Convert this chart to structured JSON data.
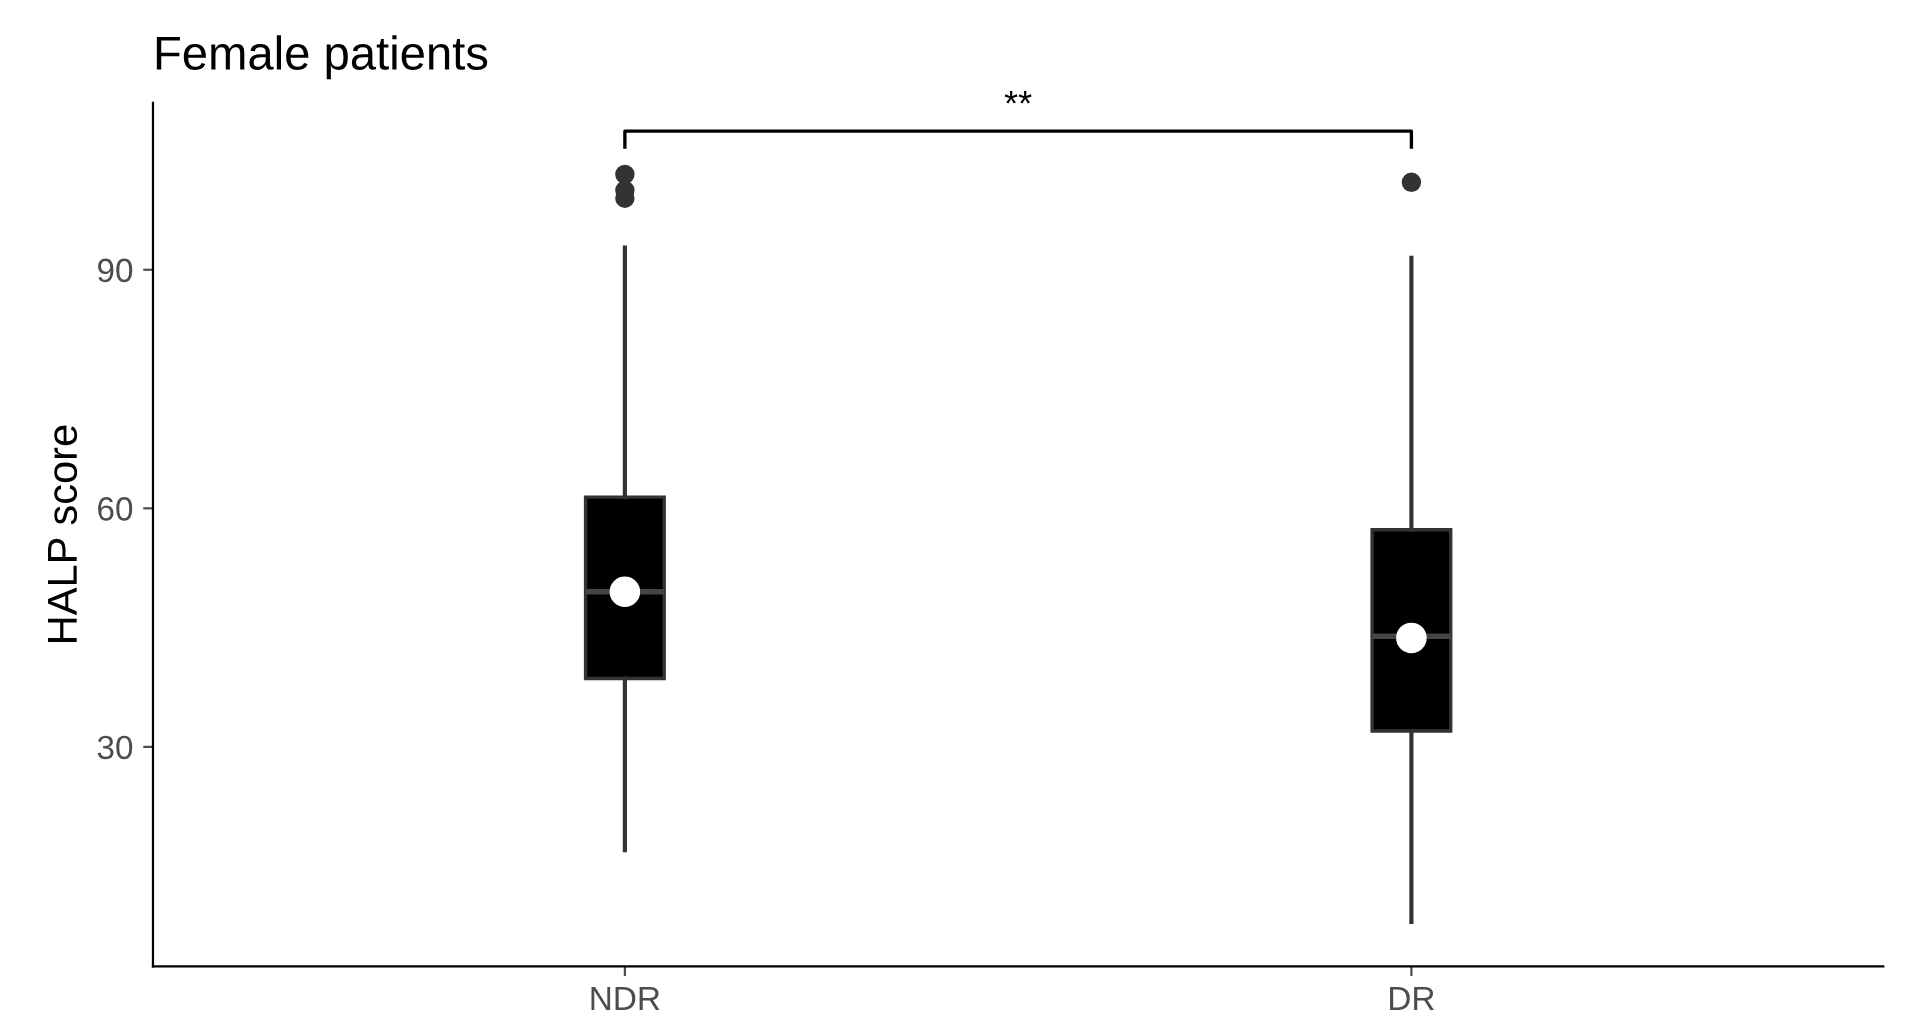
{
  "chart_data": {
    "type": "box",
    "title": "Female patients",
    "ylabel": "HALP score",
    "categories": [
      "NDR",
      "DR"
    ],
    "boxes": [
      {
        "low": 17,
        "q1": 38.6,
        "median": 49.5,
        "q3": 61.4,
        "high": 92.8,
        "mean": 49.5,
        "outliers": [
          102,
          100,
          99
        ]
      },
      {
        "low": 8,
        "q1": 32,
        "median": 43.9,
        "q3": 57.3,
        "high": 91.5,
        "mean": 43.7,
        "outliers": [
          101
        ]
      }
    ],
    "ylim": [
      2.4,
      111
    ],
    "yticks": [
      30,
      60,
      90
    ],
    "grid": false,
    "annotations": [
      "**"
    ]
  }
}
